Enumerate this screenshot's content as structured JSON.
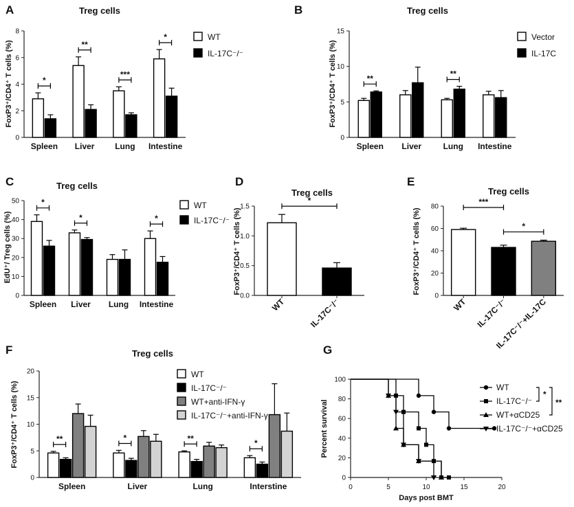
{
  "panels": [
    {
      "letter": "A",
      "type": "bar",
      "title": "Treg cells",
      "ylabel": "FoxP3⁺/CD4⁺ T cells (%)",
      "ylim": [
        0,
        8
      ],
      "yticks": [
        0,
        2,
        4,
        6,
        8
      ],
      "categories": [
        "Spleen",
        "Liver",
        "Lung",
        "Intestine"
      ],
      "series": [
        {
          "name": "WT",
          "color": "#ffffff",
          "values": [
            2.9,
            5.4,
            3.5,
            5.9
          ],
          "errors": [
            0.45,
            0.65,
            0.3,
            0.7
          ]
        },
        {
          "name": "IL-17C⁻/⁻",
          "color": "#000000",
          "values": [
            1.4,
            2.1,
            1.7,
            3.1
          ],
          "errors": [
            0.3,
            0.35,
            0.15,
            0.6
          ]
        }
      ],
      "significance": [
        {
          "category": 0,
          "label": "*"
        },
        {
          "category": 1,
          "label": "**"
        },
        {
          "category": 2,
          "label": "***"
        },
        {
          "category": 3,
          "label": "*"
        }
      ]
    },
    {
      "letter": "B",
      "type": "bar",
      "title": "Treg cells",
      "ylabel": "FoxP3⁺/CD4⁺ T cells (%)",
      "ylim": [
        0,
        15
      ],
      "yticks": [
        0,
        5,
        10,
        15
      ],
      "categories": [
        "Spleen",
        "Liver",
        "Lung",
        "Intestine"
      ],
      "series": [
        {
          "name": "Vector",
          "color": "#ffffff",
          "values": [
            5.2,
            6.0,
            5.3,
            6.0
          ],
          "errors": [
            0.3,
            0.6,
            0.2,
            0.5
          ]
        },
        {
          "name": "IL-17C",
          "color": "#000000",
          "values": [
            6.4,
            7.7,
            6.8,
            5.6
          ],
          "errors": [
            0.15,
            2.2,
            0.4,
            1.0
          ]
        }
      ],
      "significance": [
        {
          "category": 0,
          "label": "**"
        },
        {
          "category": 2,
          "label": "**"
        }
      ]
    },
    {
      "letter": "C",
      "type": "bar",
      "title": "Treg cells",
      "ylabel": "EdU⁺/ Treg cells (%)",
      "ylim": [
        0,
        50
      ],
      "yticks": [
        0,
        10,
        20,
        30,
        40,
        50
      ],
      "categories": [
        "Spleen",
        "Liver",
        "Lung",
        "Intestine"
      ],
      "series": [
        {
          "name": "WT",
          "color": "#ffffff",
          "values": [
            39,
            33,
            19,
            30
          ],
          "errors": [
            3.5,
            1.5,
            2.5,
            4
          ]
        },
        {
          "name": "IL-17C⁻/⁻",
          "color": "#000000",
          "values": [
            26,
            29.5,
            19,
            17.5
          ],
          "errors": [
            3,
            1,
            5,
            3
          ]
        }
      ],
      "significance": [
        {
          "category": 0,
          "label": "*"
        },
        {
          "category": 1,
          "label": "*"
        },
        {
          "category": 3,
          "label": "*"
        }
      ]
    },
    {
      "letter": "D",
      "type": "bar",
      "title": "Treg cells",
      "ylabel": "FoxP3⁺/CD4⁺ T cells (%)",
      "ylim": [
        0,
        1.5
      ],
      "yticks": [
        0.0,
        0.5,
        1.0,
        1.5
      ],
      "yticklabels": [
        "0.0",
        "0.5",
        "1.0",
        "1.5"
      ],
      "categories": [
        "WT",
        "IL-17C⁻/⁻"
      ],
      "colors": [
        "#ffffff",
        "#000000"
      ],
      "values": [
        1.22,
        0.46
      ],
      "errors": [
        0.14,
        0.09
      ],
      "significance": [
        {
          "from": 0,
          "to": 1,
          "label": "*"
        }
      ]
    },
    {
      "letter": "E",
      "type": "bar",
      "title": "Treg cells",
      "ylabel": "FoxP3⁺/CD4⁺ T cells (%)",
      "ylim": [
        0,
        80
      ],
      "yticks": [
        0,
        20,
        40,
        60,
        80
      ],
      "categories": [
        "WT",
        "IL-17C⁻/⁻",
        "IL-17C⁻/⁻+IL-17C"
      ],
      "colors": [
        "#ffffff",
        "#000000",
        "#808080"
      ],
      "values": [
        59,
        43,
        48.5
      ],
      "errors": [
        1.2,
        2,
        1
      ],
      "significance": [
        {
          "from": 0,
          "to": 1,
          "label": "***"
        },
        {
          "from": 1,
          "to": 2,
          "label": "*"
        }
      ]
    },
    {
      "letter": "F",
      "type": "bar",
      "title": "Treg cells",
      "ylabel": "FoxP3⁺/CD4⁺ T cells (%)",
      "ylim": [
        0,
        20
      ],
      "yticks": [
        0,
        5,
        10,
        15,
        20
      ],
      "categories": [
        "Spleen",
        "Liver",
        "Lung",
        "Interstine"
      ],
      "series": [
        {
          "name": "WT",
          "color": "#ffffff",
          "values": [
            4.6,
            4.6,
            4.8,
            3.7
          ],
          "errors": [
            0.3,
            0.5,
            0.2,
            0.4
          ]
        },
        {
          "name": "IL-17C⁻/⁻",
          "color": "#000000",
          "values": [
            3.4,
            3.2,
            3.0,
            2.5
          ],
          "errors": [
            0.3,
            0.4,
            0.4,
            0.4
          ]
        },
        {
          "name": "WT+anti-IFN-γ",
          "color": "#808080",
          "values": [
            12,
            7.7,
            5.9,
            11.8
          ],
          "errors": [
            1.8,
            1.1,
            0.7,
            5.8
          ]
        },
        {
          "name": "IL-17C⁻/⁻+anti-IFN-γ",
          "color": "#d3d3d3",
          "values": [
            9.6,
            6.8,
            5.6,
            8.7
          ],
          "errors": [
            2.1,
            1.3,
            0.5,
            3.4
          ]
        }
      ],
      "significance": [
        {
          "category": 0,
          "label": "**"
        },
        {
          "category": 1,
          "label": "*"
        },
        {
          "category": 2,
          "label": "**"
        },
        {
          "category": 3,
          "label": "*"
        }
      ]
    },
    {
      "letter": "G",
      "type": "line",
      "title": "",
      "ylabel": "Percent survival",
      "xlabel": "Days post BMT",
      "xlim": [
        0,
        20
      ],
      "xticks": [
        0,
        5,
        10,
        15,
        20
      ],
      "ylim": [
        0,
        100
      ],
      "yticks": [
        0,
        20,
        40,
        60,
        80,
        100
      ],
      "series": [
        {
          "name": "WT",
          "marker": "circle",
          "x": [
            0,
            9,
            9,
            11,
            11,
            13,
            13,
            19
          ],
          "y": [
            100,
            100,
            83.3,
            83.3,
            66.7,
            66.7,
            50,
            50
          ]
        },
        {
          "name": "IL-17C⁻/⁻",
          "marker": "square",
          "x": [
            0,
            6,
            6,
            7,
            7,
            9,
            9,
            10,
            10,
            11,
            11,
            12,
            12,
            13
          ],
          "y": [
            100,
            100,
            83.3,
            83.3,
            66.7,
            66.7,
            50,
            50,
            33.3,
            33.3,
            16.7,
            16.7,
            0,
            0
          ]
        },
        {
          "name": "WT+αCD25",
          "marker": "triangle-up",
          "x": [
            0,
            5,
            5,
            6,
            6,
            7,
            7,
            9,
            9,
            12,
            12
          ],
          "y": [
            100,
            100,
            83.3,
            83.3,
            50,
            50,
            33.3,
            33.3,
            16.7,
            16.7,
            0
          ]
        },
        {
          "name": "IL-17C⁻/⁻+αCD25",
          "marker": "triangle-down",
          "x": [
            0,
            5,
            5,
            6,
            6,
            7,
            7,
            9,
            9,
            10,
            10,
            11,
            11
          ],
          "y": [
            100,
            100,
            83.3,
            83.3,
            66.7,
            66.7,
            33.3,
            33.3,
            16.7,
            16.7,
            16.7,
            16.7,
            0
          ]
        }
      ],
      "significance": [
        {
          "label": "*"
        },
        {
          "label": "**"
        }
      ]
    }
  ]
}
